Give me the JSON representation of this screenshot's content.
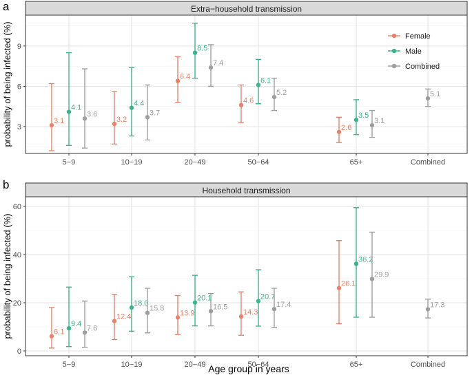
{
  "colors": {
    "Female": "#e8826a",
    "Male": "#3bb48d",
    "Combined": "#9e9e9e"
  },
  "xlabel": "Age group in years",
  "chart_data": [
    {
      "type": "scatter",
      "panel_label": "a",
      "title": "Extra−household transmission",
      "ylabel": "probability of being infected (%)",
      "ylim": [
        1.0,
        11.3
      ],
      "yticks": [
        3,
        6,
        9
      ],
      "categories": [
        "5−9",
        "10−19",
        "20−49",
        "50−64",
        "65+",
        "Combined"
      ],
      "legend": {
        "placement": "top-right",
        "entries": [
          "Female",
          "Male",
          "Combined"
        ]
      },
      "series": [
        {
          "name": "Female",
          "points": [
            {
              "cat": 0,
              "value": 3.1,
              "label": "3.1",
              "low": 1.2,
              "high": 6.2
            },
            {
              "cat": 1,
              "value": 3.2,
              "label": "3.2",
              "low": 1.7,
              "high": 5.6
            },
            {
              "cat": 2,
              "value": 6.4,
              "label": "6.4",
              "low": 4.8,
              "high": 8.2
            },
            {
              "cat": 3,
              "value": 4.6,
              "label": "4.6",
              "low": 3.3,
              "high": 6.1
            },
            {
              "cat": 4,
              "value": 2.6,
              "label": "2.6",
              "low": 1.8,
              "high": 3.7
            }
          ]
        },
        {
          "name": "Male",
          "points": [
            {
              "cat": 0,
              "value": 4.1,
              "label": "4.1",
              "low": 1.6,
              "high": 8.5
            },
            {
              "cat": 1,
              "value": 4.4,
              "label": "4.4",
              "low": 2.3,
              "high": 7.4
            },
            {
              "cat": 2,
              "value": 8.5,
              "label": "8.5",
              "low": 6.6,
              "high": 10.7
            },
            {
              "cat": 3,
              "value": 6.1,
              "label": "6.1",
              "low": 4.7,
              "high": 8.0
            },
            {
              "cat": 4,
              "value": 3.5,
              "label": "3.5",
              "low": 2.4,
              "high": 5.0
            }
          ]
        },
        {
          "name": "Combined",
          "points": [
            {
              "cat": 0,
              "value": 3.6,
              "label": "3.6",
              "low": 1.4,
              "high": 7.3
            },
            {
              "cat": 1,
              "value": 3.7,
              "label": "3.7",
              "low": 2.0,
              "high": 6.1
            },
            {
              "cat": 2,
              "value": 7.4,
              "label": "7.4",
              "low": 6.0,
              "high": 9.1
            },
            {
              "cat": 3,
              "value": 5.2,
              "label": "5.2",
              "low": 4.2,
              "high": 6.6
            },
            {
              "cat": 4,
              "value": 3.1,
              "label": "3.1",
              "low": 2.2,
              "high": 4.2
            },
            {
              "cat": 5,
              "value": 5.1,
              "label": "5.1",
              "low": 4.5,
              "high": 5.8
            }
          ]
        }
      ]
    },
    {
      "type": "scatter",
      "panel_label": "b",
      "title": "Household transmission",
      "ylabel": "probability of being infected (%)",
      "ylim": [
        -2,
        64
      ],
      "yticks": [
        0,
        20,
        40,
        60
      ],
      "categories": [
        "5−9",
        "10−19",
        "20−49",
        "50−64",
        "65+",
        "Combined"
      ],
      "series": [
        {
          "name": "Female",
          "points": [
            {
              "cat": 0,
              "value": 6.1,
              "label": "6.1",
              "low": 1.2,
              "high": 18.0
            },
            {
              "cat": 1,
              "value": 12.4,
              "label": "12.4",
              "low": 4.7,
              "high": 23.5
            },
            {
              "cat": 2,
              "value": 13.9,
              "label": "13.9",
              "low": 6.8,
              "high": 23.0
            },
            {
              "cat": 3,
              "value": 14.3,
              "label": "14.3",
              "low": 6.5,
              "high": 24.5
            },
            {
              "cat": 4,
              "value": 26.1,
              "label": "26.1",
              "low": 11.3,
              "high": 45.8
            }
          ]
        },
        {
          "name": "Male",
          "points": [
            {
              "cat": 0,
              "value": 9.4,
              "label": "9.4",
              "low": 1.8,
              "high": 26.5
            },
            {
              "cat": 1,
              "value": 18.0,
              "label": "18.0",
              "low": 8.2,
              "high": 30.8
            },
            {
              "cat": 2,
              "value": 20.1,
              "label": "20.1",
              "low": 10.4,
              "high": 31.4
            },
            {
              "cat": 3,
              "value": 20.7,
              "label": "20.7",
              "low": 10.3,
              "high": 33.7
            },
            {
              "cat": 4,
              "value": 36.2,
              "label": "36.2",
              "low": 14.0,
              "high": 59.5
            }
          ]
        },
        {
          "name": "Combined",
          "points": [
            {
              "cat": 0,
              "value": 7.6,
              "label": "7.6",
              "low": 1.5,
              "high": 20.7
            },
            {
              "cat": 1,
              "value": 15.8,
              "label": "15.8",
              "low": 7.5,
              "high": 26.0
            },
            {
              "cat": 2,
              "value": 16.5,
              "label": "16.5",
              "low": 10.4,
              "high": 23.8
            },
            {
              "cat": 3,
              "value": 17.4,
              "label": "17.4",
              "low": 9.7,
              "high": 26.0
            },
            {
              "cat": 4,
              "value": 29.9,
              "label": "29.9",
              "low": 14.0,
              "high": 49.3
            },
            {
              "cat": 5,
              "value": 17.3,
              "label": "17.3",
              "low": 13.7,
              "high": 21.5
            }
          ]
        }
      ]
    }
  ]
}
